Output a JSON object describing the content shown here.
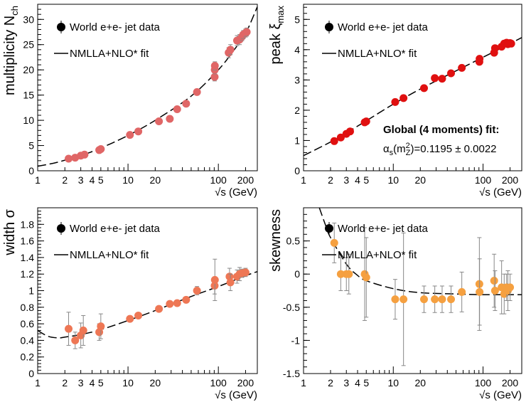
{
  "chart_data": [
    {
      "type": "scatter",
      "id": "multiplicity",
      "ylabel": "multiplicity N",
      "ylabel_sub": "ch",
      "xlabel": "√s (GeV)",
      "xlim": [
        1,
        270
      ],
      "ylim": [
        0,
        33
      ],
      "yticks": [
        0,
        5,
        10,
        15,
        20,
        25,
        30
      ],
      "xticks": [
        1,
        2,
        3,
        4,
        5,
        10,
        20,
        100,
        200
      ],
      "legend": {
        "data": "World e+e- jet data",
        "fit": "NMLLA+NLO* fit"
      },
      "color": "#e06666",
      "points": [
        {
          "x": 2.2,
          "y": 2.4,
          "err": 0.3
        },
        {
          "x": 2.6,
          "y": 2.6,
          "err": 0.3
        },
        {
          "x": 3.0,
          "y": 3.0,
          "err": 0.4
        },
        {
          "x": 3.3,
          "y": 3.2,
          "err": 0.4
        },
        {
          "x": 4.8,
          "y": 4.1,
          "err": 0.3
        },
        {
          "x": 5.0,
          "y": 4.3,
          "err": 0.3
        },
        {
          "x": 10.5,
          "y": 7.1,
          "err": 0.4
        },
        {
          "x": 13.0,
          "y": 7.8,
          "err": 0.4
        },
        {
          "x": 22.0,
          "y": 9.8,
          "err": 0.4
        },
        {
          "x": 29.0,
          "y": 10.3,
          "err": 0.4
        },
        {
          "x": 35.0,
          "y": 12.2,
          "err": 0.4
        },
        {
          "x": 44.0,
          "y": 13.3,
          "err": 0.4
        },
        {
          "x": 58.0,
          "y": 15.6,
          "err": 0.5
        },
        {
          "x": 91.0,
          "y": 18.6,
          "err": 0.8
        },
        {
          "x": 91.2,
          "y": 20.0,
          "err": 0.8
        },
        {
          "x": 91.5,
          "y": 20.8,
          "err": 0.8
        },
        {
          "x": 130.0,
          "y": 23.4,
          "err": 1.0
        },
        {
          "x": 136.0,
          "y": 24.0,
          "err": 1.0
        },
        {
          "x": 161.0,
          "y": 25.8,
          "err": 1.0
        },
        {
          "x": 172.0,
          "y": 26.0,
          "err": 1.0
        },
        {
          "x": 183.0,
          "y": 26.6,
          "err": 0.8
        },
        {
          "x": 189.0,
          "y": 27.0,
          "err": 0.8
        },
        {
          "x": 200.0,
          "y": 27.3,
          "err": 0.8
        },
        {
          "x": 206.0,
          "y": 27.5,
          "err": 0.8
        }
      ],
      "fit": [
        [
          1,
          0.9
        ],
        [
          1.5,
          1.5
        ],
        [
          2,
          2.1
        ],
        [
          3,
          3.0
        ],
        [
          5,
          4.5
        ],
        [
          10,
          7.0
        ],
        [
          20,
          10.0
        ],
        [
          50,
          14.8
        ],
        [
          100,
          20.0
        ],
        [
          150,
          24.0
        ],
        [
          200,
          27.2
        ],
        [
          270,
          32.5
        ]
      ]
    },
    {
      "type": "scatter",
      "id": "peak",
      "ylabel": "peak ξ",
      "ylabel_sub": "max",
      "xlabel": "√s (GeV)",
      "xlim": [
        1,
        270
      ],
      "ylim": [
        0,
        5.5
      ],
      "yticks": [
        0,
        1,
        2,
        3,
        4,
        5
      ],
      "xticks": [
        1,
        2,
        3,
        4,
        5,
        10,
        20,
        100,
        200
      ],
      "legend": {
        "data": "World e+e- jet data",
        "fit": "NMLLA+NLO* fit"
      },
      "annotation_title": "Global (4 moments) fit:",
      "annotation_value": "=0.1195 ± 0.0022",
      "color": "#e01010",
      "points": [
        {
          "x": 2.2,
          "y": 0.98
        },
        {
          "x": 2.6,
          "y": 1.1
        },
        {
          "x": 3.0,
          "y": 1.22
        },
        {
          "x": 3.3,
          "y": 1.3
        },
        {
          "x": 4.8,
          "y": 1.6
        },
        {
          "x": 5.0,
          "y": 1.63
        },
        {
          "x": 10.5,
          "y": 2.27
        },
        {
          "x": 13.0,
          "y": 2.4
        },
        {
          "x": 22.0,
          "y": 2.73
        },
        {
          "x": 29.0,
          "y": 3.06
        },
        {
          "x": 35.0,
          "y": 3.04
        },
        {
          "x": 44.0,
          "y": 3.22
        },
        {
          "x": 58.0,
          "y": 3.4
        },
        {
          "x": 91.0,
          "y": 3.6
        },
        {
          "x": 91.5,
          "y": 3.7
        },
        {
          "x": 133.0,
          "y": 3.9
        },
        {
          "x": 136.0,
          "y": 4.05
        },
        {
          "x": 161.0,
          "y": 4.1
        },
        {
          "x": 172.0,
          "y": 4.2
        },
        {
          "x": 183.0,
          "y": 4.23
        },
        {
          "x": 189.0,
          "y": 4.18
        },
        {
          "x": 200.0,
          "y": 4.22
        },
        {
          "x": 206.0,
          "y": 4.2
        }
      ],
      "fit": [
        [
          1,
          0.5
        ],
        [
          2,
          0.95
        ],
        [
          3,
          1.25
        ],
        [
          5,
          1.65
        ],
        [
          10,
          2.2
        ],
        [
          20,
          2.7
        ],
        [
          50,
          3.3
        ],
        [
          100,
          3.75
        ],
        [
          200,
          4.2
        ],
        [
          270,
          4.4
        ]
      ]
    },
    {
      "type": "scatter",
      "id": "width",
      "ylabel": "width σ",
      "ylabel_sub": "",
      "xlabel": "√s (GeV)",
      "xlim": [
        1,
        270
      ],
      "ylim": [
        0,
        2.0
      ],
      "yticks": [
        0,
        0.2,
        0.4,
        0.6,
        0.8,
        1,
        1.2,
        1.4,
        1.6,
        1.8
      ],
      "xticks": [
        1,
        2,
        3,
        4,
        5,
        10,
        20,
        100,
        200
      ],
      "legend": {
        "data": "World e+e- jet data",
        "fit": "NMLLA+NLO* fit"
      },
      "color": "#ee7755",
      "points": [
        {
          "x": 2.2,
          "y": 0.54,
          "err": 0.2
        },
        {
          "x": 2.6,
          "y": 0.4,
          "err": 0.1
        },
        {
          "x": 3.0,
          "y": 0.46,
          "err": 0.15
        },
        {
          "x": 3.2,
          "y": 0.52,
          "err": 0.18
        },
        {
          "x": 4.8,
          "y": 0.5,
          "err": 0.1
        },
        {
          "x": 5.0,
          "y": 0.57,
          "err": 0.15
        },
        {
          "x": 10.5,
          "y": 0.66,
          "err": 0.03
        },
        {
          "x": 13.0,
          "y": 0.7,
          "err": 0.03
        },
        {
          "x": 22.0,
          "y": 0.78,
          "err": 0.03
        },
        {
          "x": 29.0,
          "y": 0.84,
          "err": 0.03
        },
        {
          "x": 35.0,
          "y": 0.85,
          "err": 0.03
        },
        {
          "x": 44.0,
          "y": 0.89,
          "err": 0.03
        },
        {
          "x": 58.0,
          "y": 1.0,
          "err": 0.05
        },
        {
          "x": 91.0,
          "y": 1.06,
          "err": 0.1
        },
        {
          "x": 91.5,
          "y": 1.13,
          "err": 0.25
        },
        {
          "x": 133.0,
          "y": 1.17,
          "err": 0.1
        },
        {
          "x": 136.0,
          "y": 1.1,
          "err": 0.1
        },
        {
          "x": 161.0,
          "y": 1.17,
          "err": 0.08
        },
        {
          "x": 172.0,
          "y": 1.2,
          "err": 0.08
        },
        {
          "x": 183.0,
          "y": 1.21,
          "err": 0.05
        },
        {
          "x": 200.0,
          "y": 1.22,
          "err": 0.05
        }
      ],
      "fit": [
        [
          1,
          0.52
        ],
        [
          1.3,
          0.45
        ],
        [
          1.7,
          0.43
        ],
        [
          2,
          0.44
        ],
        [
          3,
          0.47
        ],
        [
          5,
          0.53
        ],
        [
          10,
          0.64
        ],
        [
          20,
          0.76
        ],
        [
          50,
          0.93
        ],
        [
          100,
          1.05
        ],
        [
          200,
          1.18
        ],
        [
          270,
          1.23
        ]
      ]
    },
    {
      "type": "scatter",
      "id": "skewness",
      "ylabel": "skewness",
      "ylabel_sub": "",
      "xlabel": "√s (GeV)",
      "xlim": [
        1,
        270
      ],
      "ylim": [
        -1.5,
        1.0
      ],
      "yticks": [
        -1.5,
        -1,
        -0.5,
        0,
        0.5
      ],
      "xticks": [
        1,
        2,
        3,
        4,
        5,
        10,
        20,
        100,
        200
      ],
      "legend": {
        "data": "World e+e- jet data",
        "fit": "NMLLA+NLO* fit"
      },
      "color": "#f5a040",
      "points": [
        {
          "x": 2.2,
          "y": 0.47,
          "err": 0.3
        },
        {
          "x": 2.6,
          "y": 0.0,
          "err": 0.25
        },
        {
          "x": 3.0,
          "y": 0.0,
          "err": 0.25
        },
        {
          "x": 3.2,
          "y": 0.0,
          "err": 0.3
        },
        {
          "x": 4.8,
          "y": 0.0,
          "err": 0.7
        },
        {
          "x": 5.0,
          "y": -0.05,
          "err": 0.6
        },
        {
          "x": 10.5,
          "y": -0.38,
          "err": 0.3
        },
        {
          "x": 13.0,
          "y": -0.38,
          "err": 1.0
        },
        {
          "x": 22.0,
          "y": -0.38,
          "err": 0.2
        },
        {
          "x": 29.0,
          "y": -0.38,
          "err": 0.2
        },
        {
          "x": 35.0,
          "y": -0.38,
          "err": 0.2
        },
        {
          "x": 44.0,
          "y": -0.38,
          "err": 0.2
        },
        {
          "x": 58.0,
          "y": -0.27,
          "err": 0.3
        },
        {
          "x": 91.0,
          "y": -0.15,
          "err": 0.7
        },
        {
          "x": 91.5,
          "y": -0.27,
          "err": 0.5
        },
        {
          "x": 133.0,
          "y": -0.1,
          "err": 0.4
        },
        {
          "x": 136.0,
          "y": -0.25,
          "err": 0.3
        },
        {
          "x": 161.0,
          "y": -0.2,
          "err": 0.4
        },
        {
          "x": 172.0,
          "y": -0.3,
          "err": 0.3
        },
        {
          "x": 183.0,
          "y": -0.2,
          "err": 0.2
        },
        {
          "x": 189.0,
          "y": -0.25,
          "err": 0.3
        },
        {
          "x": 200.0,
          "y": -0.2,
          "err": 0.2
        }
      ],
      "fit": [
        [
          1.5,
          1.0
        ],
        [
          1.8,
          0.7
        ],
        [
          2,
          0.55
        ],
        [
          3,
          0.15
        ],
        [
          4,
          -0.02
        ],
        [
          5,
          -0.1
        ],
        [
          10,
          -0.22
        ],
        [
          20,
          -0.28
        ],
        [
          50,
          -0.3
        ],
        [
          100,
          -0.31
        ],
        [
          270,
          -0.31
        ]
      ]
    }
  ]
}
